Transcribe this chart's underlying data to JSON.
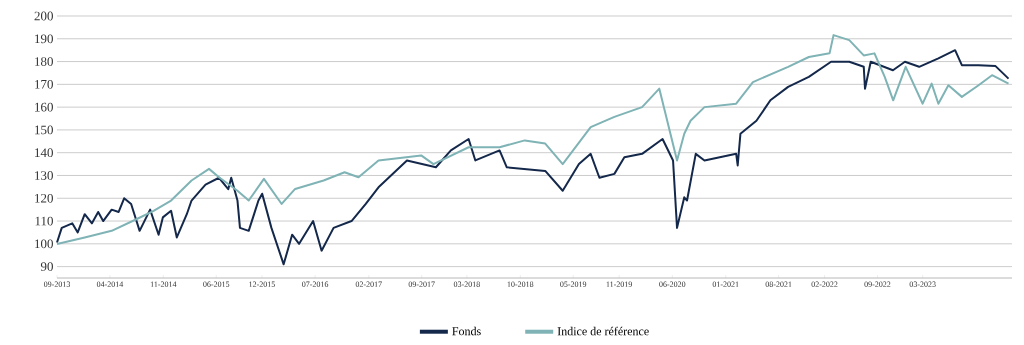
{
  "chart_data": {
    "type": "line",
    "xlim": [
      "2013-09-15",
      "2024-03-07"
    ],
    "ylim": [
      85,
      200
    ],
    "xticks": [
      {
        "value": "2013-09-15",
        "label": "09-2013"
      },
      {
        "value": "2014-04-15",
        "label": "04-2014"
      },
      {
        "value": "2014-11-15",
        "label": "11-2014"
      },
      {
        "value": "2015-06-15",
        "label": "06-2015"
      },
      {
        "value": "2015-12-15",
        "label": "12-2015"
      },
      {
        "value": "2016-07-15",
        "label": "07-2016"
      },
      {
        "value": "2017-02-15",
        "label": "02-2017"
      },
      {
        "value": "2017-09-15",
        "label": "09-2017"
      },
      {
        "value": "2018-03-15",
        "label": "03-2018"
      },
      {
        "value": "2018-10-15",
        "label": "10-2018"
      },
      {
        "value": "2019-05-15",
        "label": "05-2019"
      },
      {
        "value": "2019-11-15",
        "label": "11-2019"
      },
      {
        "value": "2020-06-15",
        "label": "06-2020"
      },
      {
        "value": "2021-01-15",
        "label": "01-2021"
      },
      {
        "value": "2021-08-15",
        "label": "08-2021"
      },
      {
        "value": "2022-02-15",
        "label": "02-2022"
      },
      {
        "value": "2022-09-15",
        "label": "09-2022"
      },
      {
        "value": "2023-03-15",
        "label": "03-2023"
      }
    ],
    "yticks": [
      90,
      100,
      110,
      120,
      130,
      140,
      150,
      160,
      170,
      180,
      190,
      200
    ],
    "grid": "y",
    "legend": "bottom",
    "series": [
      {
        "name": "Fonds",
        "color": "#14284b",
        "x": [
          "2013-09-15",
          "2013-10-04",
          "2013-11-15",
          "2013-12-07",
          "2014-01-04",
          "2014-02-02",
          "2014-02-27",
          "2014-03-19",
          "2014-04-22",
          "2014-05-20",
          "2014-06-11",
          "2014-07-09",
          "2014-08-12",
          "2014-09-23",
          "2014-10-27",
          "2014-11-13",
          "2014-12-16",
          "2015-01-08",
          "2015-02-17",
          "2015-03-08",
          "2015-05-03",
          "2015-06-26",
          "2015-08-02",
          "2015-08-14",
          "2015-09-08",
          "2015-09-18",
          "2015-10-23",
          "2015-12-01",
          "2015-12-16",
          "2016-01-22",
          "2016-03-11",
          "2016-04-14",
          "2016-05-12",
          "2016-07-07",
          "2016-08-10",
          "2016-09-27",
          "2016-12-08",
          "2017-02-03",
          "2017-03-26",
          "2017-07-18",
          "2017-11-11",
          "2018-01-10",
          "2018-03-22",
          "2018-04-18",
          "2018-07-24",
          "2018-08-22",
          "2019-01-23",
          "2019-04-03",
          "2019-06-07",
          "2019-07-24",
          "2019-08-28",
          "2019-10-27",
          "2019-12-06",
          "2020-02-15",
          "2020-05-07",
          "2020-06-18",
          "2020-07-04",
          "2020-08-02",
          "2020-08-13",
          "2020-09-17",
          "2020-10-22",
          "2021-02-26",
          "2021-03-04",
          "2021-03-15",
          "2021-05-18",
          "2021-07-13",
          "2021-09-22",
          "2021-12-14",
          "2022-03-13",
          "2022-05-25",
          "2022-07-22",
          "2022-07-27",
          "2022-08-19",
          "2022-11-16",
          "2023-01-03",
          "2023-03-01",
          "2023-05-17",
          "2023-07-23",
          "2023-08-19",
          "2023-10-25",
          "2024-01-01",
          "2024-02-22"
        ],
        "values": [
          100.6,
          107,
          109,
          105,
          113,
          109,
          114,
          110,
          115,
          114,
          120,
          117.5,
          105.7,
          115,
          104,
          111.6,
          114.5,
          102.8,
          113,
          119,
          126,
          129,
          124,
          129,
          119,
          107,
          105.7,
          119,
          122,
          107,
          91,
          104,
          100,
          110,
          97,
          107,
          110,
          117.5,
          124.8,
          136.6,
          133.6,
          141,
          146,
          136.6,
          141,
          133.6,
          132,
          123.3,
          135,
          139.5,
          129,
          130.7,
          138,
          139.5,
          146,
          136.6,
          107,
          120.4,
          119,
          139.5,
          136.6,
          139.5,
          134.4,
          148.3,
          154,
          163,
          168.9,
          173.3,
          179.9,
          179.9,
          177.7,
          168.1,
          179.9,
          176.2,
          179.9,
          177.7,
          181.4,
          185,
          178.4,
          178.4,
          178,
          172.5
        ]
      },
      {
        "name": "Indice de référence",
        "color": "#7fb3b5",
        "x": [
          "2013-09-15",
          "2014-01-04",
          "2014-04-22",
          "2014-08-01",
          "2014-10-07",
          "2014-12-16",
          "2015-03-08",
          "2015-05-17",
          "2015-06-26",
          "2015-09-08",
          "2015-10-23",
          "2015-12-23",
          "2016-03-03",
          "2016-04-26",
          "2016-08-18",
          "2016-11-10",
          "2017-01-05",
          "2017-03-26",
          "2017-09-13",
          "2017-11-01",
          "2018-03-22",
          "2018-07-24",
          "2018-11-02",
          "2019-01-23",
          "2019-04-03",
          "2019-07-24",
          "2019-10-27",
          "2020-02-15",
          "2020-04-24",
          "2020-07-04",
          "2020-08-02",
          "2020-08-27",
          "2020-10-22",
          "2021-02-26",
          "2021-05-04",
          "2021-09-22",
          "2021-12-14",
          "2022-03-07",
          "2022-03-23",
          "2022-05-25",
          "2022-07-22",
          "2022-09-03",
          "2022-10-14",
          "2022-11-17",
          "2023-01-06",
          "2023-03-15",
          "2023-04-20",
          "2023-05-17",
          "2023-06-26",
          "2023-08-19",
          "2023-10-25",
          "2023-12-18",
          "2024-02-22"
        ],
        "values": [
          99.9,
          102.8,
          105.7,
          110.9,
          114.5,
          119,
          127.8,
          132.9,
          129.2,
          123.3,
          119,
          128.5,
          117.5,
          124.1,
          127.8,
          131.4,
          129.2,
          136.6,
          138.8,
          135,
          142.4,
          142.4,
          145.4,
          144,
          135,
          151.2,
          155.7,
          160,
          168.1,
          136.6,
          148.3,
          154,
          160,
          161.5,
          171,
          177.7,
          182,
          183.6,
          191.6,
          189.4,
          182.7,
          183.6,
          173.3,
          163,
          177.7,
          161.5,
          170.3,
          161.5,
          169.6,
          164.5,
          169.6,
          174,
          170.3
        ]
      }
    ]
  }
}
